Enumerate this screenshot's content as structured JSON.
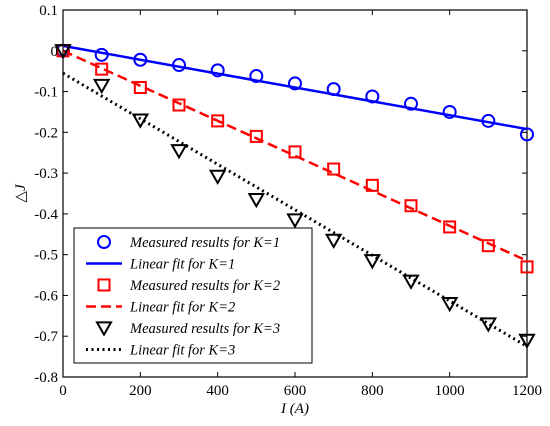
{
  "chart_data": {
    "type": "scatter",
    "xlabel": "I (A)",
    "ylabel": "△J",
    "xlim": [
      0,
      1200
    ],
    "ylim": [
      -0.8,
      0.1
    ],
    "x_ticks": [
      0,
      200,
      400,
      600,
      800,
      1000,
      1200
    ],
    "y_ticks": [
      0.1,
      0,
      -0.1,
      -0.2,
      -0.3,
      -0.4,
      -0.5,
      -0.6,
      -0.7,
      -0.8
    ],
    "x_tick_labels": [
      "0",
      "200",
      "400",
      "600",
      "800",
      "1000",
      "1200"
    ],
    "y_tick_labels": [
      "0.1",
      "0",
      "-0.1",
      "-0.2",
      "-0.3",
      "-0.4",
      "-0.5",
      "-0.6",
      "-0.7",
      "-0.8"
    ],
    "grid": false,
    "legend_position": "bottom-left",
    "series": [
      {
        "name": "Measured results for K=1",
        "kind": "markers",
        "marker": "circle",
        "color": "#0000ff",
        "x": [
          0,
          100,
          200,
          300,
          400,
          500,
          600,
          700,
          800,
          900,
          1000,
          1100,
          1200
        ],
        "y": [
          0.0,
          -0.01,
          -0.022,
          -0.035,
          -0.048,
          -0.062,
          -0.08,
          -0.094,
          -0.112,
          -0.13,
          -0.15,
          -0.172,
          -0.205
        ]
      },
      {
        "name": "Linear fit for K=1",
        "kind": "line",
        "dash": "solid",
        "color": "#0000ff",
        "x": [
          0,
          1200
        ],
        "y": [
          0.012,
          -0.192
        ]
      },
      {
        "name": "Measured results for K=2",
        "kind": "markers",
        "marker": "square",
        "color": "#ff0000",
        "x": [
          0,
          100,
          200,
          300,
          400,
          500,
          600,
          700,
          800,
          900,
          1000,
          1100,
          1200
        ],
        "y": [
          0.0,
          -0.045,
          -0.09,
          -0.133,
          -0.172,
          -0.21,
          -0.248,
          -0.29,
          -0.33,
          -0.38,
          -0.432,
          -0.478,
          -0.53
        ]
      },
      {
        "name": "Linear fit for K=2",
        "kind": "line",
        "dash": "dashed",
        "color": "#ff0000",
        "x": [
          0,
          1200
        ],
        "y": [
          0.0,
          -0.515
        ]
      },
      {
        "name": "Measured results for K=3",
        "kind": "markers",
        "marker": "triangle-down",
        "color": "#000000",
        "x": [
          0,
          100,
          200,
          300,
          400,
          500,
          600,
          700,
          800,
          900,
          1000,
          1100,
          1200
        ],
        "y": [
          0.0,
          -0.085,
          -0.17,
          -0.245,
          -0.308,
          -0.365,
          -0.415,
          -0.465,
          -0.515,
          -0.565,
          -0.62,
          -0.67,
          -0.71
        ]
      },
      {
        "name": "Linear fit for K=3",
        "kind": "line",
        "dash": "dotted",
        "color": "#000000",
        "x": [
          0,
          1200
        ],
        "y": [
          -0.055,
          -0.725
        ]
      }
    ]
  }
}
